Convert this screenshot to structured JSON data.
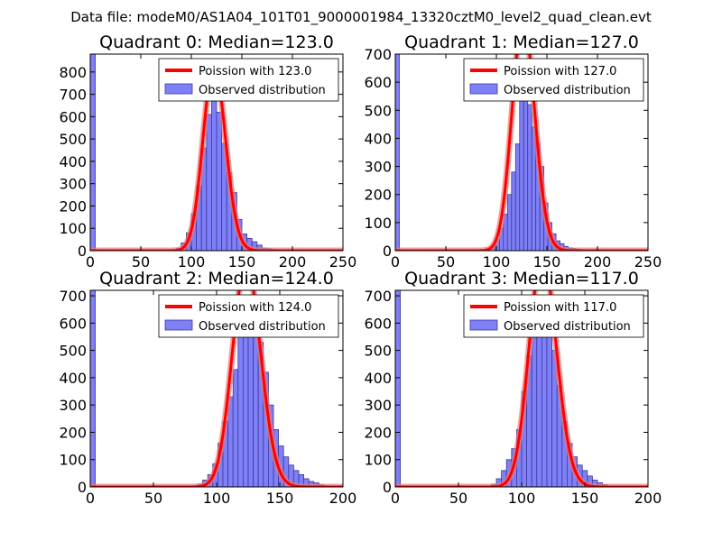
{
  "figure": {
    "suptitle": "Data file: modeM0/AS1A04_101T01_9000001984_13320cztM0_level2_quad_clean.evt"
  },
  "colors": {
    "bar_fill": "#7f7ff7",
    "bar_edge": "#3a3a9a",
    "curve": "#ff0000",
    "curve_glow": "#f07878"
  },
  "chart_data": [
    {
      "type": "bar",
      "title": "Quadrant 0: Median=123.0",
      "xlim": [
        0,
        250
      ],
      "ylim": [
        0,
        880
      ],
      "xticks": [
        0,
        50,
        100,
        150,
        200,
        250
      ],
      "yticks": [
        0,
        100,
        200,
        300,
        400,
        500,
        600,
        700,
        800
      ],
      "bin_width": 5,
      "zero_bar": 880,
      "median": 123.0,
      "legend": {
        "line": "Poission with 123.0",
        "bars": "Observed distribution",
        "position": "top-right"
      },
      "bars": [
        [
          85,
          10
        ],
        [
          90,
          35
        ],
        [
          95,
          80
        ],
        [
          100,
          165
        ],
        [
          105,
          290
        ],
        [
          110,
          460
        ],
        [
          115,
          610
        ],
        [
          120,
          670
        ],
        [
          125,
          620
        ],
        [
          130,
          480
        ],
        [
          135,
          350
        ],
        [
          140,
          260
        ],
        [
          145,
          140
        ],
        [
          150,
          75
        ],
        [
          155,
          55
        ],
        [
          160,
          40
        ],
        [
          165,
          25
        ],
        [
          170,
          12
        ],
        [
          175,
          8
        ],
        [
          180,
          5
        ]
      ]
    },
    {
      "type": "bar",
      "title": "Quadrant 1: Median=127.0",
      "xlim": [
        0,
        250
      ],
      "ylim": [
        0,
        700
      ],
      "xticks": [
        0,
        50,
        100,
        150,
        200,
        250
      ],
      "yticks": [
        0,
        100,
        200,
        300,
        400,
        500,
        600,
        700
      ],
      "bin_width": 4,
      "zero_bar": 700,
      "median": 127.0,
      "legend": {
        "line": "Poission with 127.0",
        "bars": "Observed distribution",
        "position": "top-right"
      },
      "bars": [
        [
          95,
          15
        ],
        [
          99,
          40
        ],
        [
          103,
          80
        ],
        [
          107,
          130
        ],
        [
          111,
          200
        ],
        [
          115,
          280
        ],
        [
          119,
          380
        ],
        [
          123,
          540
        ],
        [
          127,
          660
        ],
        [
          131,
          520
        ],
        [
          135,
          440
        ],
        [
          139,
          380
        ],
        [
          143,
          300
        ],
        [
          147,
          170
        ],
        [
          151,
          100
        ],
        [
          155,
          60
        ],
        [
          159,
          35
        ],
        [
          163,
          25
        ],
        [
          167,
          15
        ],
        [
          171,
          10
        ],
        [
          175,
          8
        ],
        [
          180,
          5
        ]
      ]
    },
    {
      "type": "bar",
      "title": "Quadrant 2: Median=124.0",
      "xlim": [
        0,
        200
      ],
      "ylim": [
        0,
        720
      ],
      "xticks": [
        0,
        50,
        100,
        150,
        200
      ],
      "yticks": [
        0,
        100,
        200,
        300,
        400,
        500,
        600,
        700
      ],
      "bin_width": 4,
      "zero_bar": 720,
      "median": 124.0,
      "legend": {
        "line": "Poission with 124.0",
        "bars": "Observed distribution",
        "position": "top-right"
      },
      "bars": [
        [
          85,
          10
        ],
        [
          89,
          25
        ],
        [
          93,
          45
        ],
        [
          97,
          85
        ],
        [
          101,
          160
        ],
        [
          105,
          240
        ],
        [
          109,
          330
        ],
        [
          113,
          430
        ],
        [
          117,
          560
        ],
        [
          121,
          650
        ],
        [
          125,
          660
        ],
        [
          129,
          590
        ],
        [
          133,
          530
        ],
        [
          137,
          420
        ],
        [
          141,
          300
        ],
        [
          145,
          210
        ],
        [
          149,
          150
        ],
        [
          153,
          110
        ],
        [
          157,
          80
        ],
        [
          161,
          60
        ],
        [
          165,
          45
        ],
        [
          169,
          30
        ],
        [
          173,
          20
        ],
        [
          177,
          15
        ],
        [
          181,
          8
        ]
      ]
    },
    {
      "type": "bar",
      "title": "Quadrant 3: Median=117.0",
      "xlim": [
        0,
        200
      ],
      "ylim": [
        0,
        720
      ],
      "xticks": [
        0,
        50,
        100,
        150,
        200
      ],
      "yticks": [
        0,
        100,
        200,
        300,
        400,
        500,
        600,
        700
      ],
      "bin_width": 4,
      "zero_bar": 720,
      "median": 117.0,
      "legend": {
        "line": "Poission with 117.0",
        "bars": "Observed distribution",
        "position": "top-right"
      },
      "bars": [
        [
          76,
          10
        ],
        [
          80,
          30
        ],
        [
          84,
          60
        ],
        [
          88,
          100
        ],
        [
          92,
          140
        ],
        [
          96,
          210
        ],
        [
          100,
          350
        ],
        [
          104,
          480
        ],
        [
          108,
          600
        ],
        [
          112,
          680
        ],
        [
          116,
          650
        ],
        [
          120,
          590
        ],
        [
          124,
          500
        ],
        [
          128,
          370
        ],
        [
          132,
          240
        ],
        [
          136,
          160
        ],
        [
          140,
          110
        ],
        [
          144,
          80
        ],
        [
          148,
          60
        ],
        [
          152,
          40
        ],
        [
          156,
          25
        ],
        [
          160,
          15
        ],
        [
          164,
          8
        ]
      ]
    }
  ]
}
